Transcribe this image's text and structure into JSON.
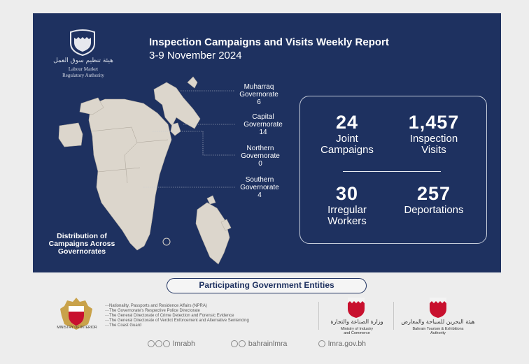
{
  "header": {
    "title": "Inspection Campaigns and Visits Weekly Report",
    "dates": "3-9 November 2024"
  },
  "logo": {
    "arabic": "هيئة تنظيم سوق العمل",
    "english_line1": "Labour Market",
    "english_line2": "Regulatory Authority"
  },
  "map": {
    "icon": "bahrain-map-icon",
    "governorates": [
      {
        "name_line1": "Muharraq",
        "name_line2": "Governorate",
        "count": "6"
      },
      {
        "name_line1": "Capital",
        "name_line2": "Governorate",
        "count": "14"
      },
      {
        "name_line1": "Northern",
        "name_line2": "Governorate",
        "count": "0"
      },
      {
        "name_line1": "Southern",
        "name_line2": "Governorate",
        "count": "4"
      }
    ],
    "distribution_line1": "Distribution of",
    "distribution_line2": "Campaigns Across",
    "distribution_line3": "Governorates"
  },
  "stats": {
    "joint_campaigns": {
      "value": "24",
      "label1": "Joint",
      "label2": "Campaigns"
    },
    "inspection_visits": {
      "value": "1,457",
      "label1": "Inspection",
      "label2": "Visits"
    },
    "irregular_workers": {
      "value": "30",
      "label1": "Irregular",
      "label2": "Workers"
    },
    "deportations": {
      "value": "257",
      "label1": "Deportations"
    }
  },
  "entities": {
    "heading": "Participating Government Entities",
    "moi_caption": "MINISTRY OF INTERIOR",
    "agencies": [
      "Nationality, Passports and Residence Affairs (NPRA)",
      "The Governorate's Respective Police Directorate",
      "The General Directorate of Crime Detection and Forensic Evidence",
      "The General Directorate of Verdict Enforcement and Alternative Sentencing",
      "The Coast Guard"
    ],
    "industry": {
      "arabic": "وزارة الصناعة والتجارة",
      "english1": "Ministry of Industry",
      "english2": "and Commerce"
    },
    "tourism": {
      "arabic": "هيئة البحرين للسياحة والمعارض",
      "english1": "Bahrain Tourism & Exhibitions",
      "english2": "Authority"
    }
  },
  "social": {
    "handle1": "lmrabh",
    "handle2": "bahrainlmra",
    "website": "lmra.gov.bh"
  },
  "colors": {
    "panel": "#1e3160",
    "land": "#dcd6cc",
    "shield_red": "#c8102e",
    "shield_gold": "#c9a24a"
  }
}
